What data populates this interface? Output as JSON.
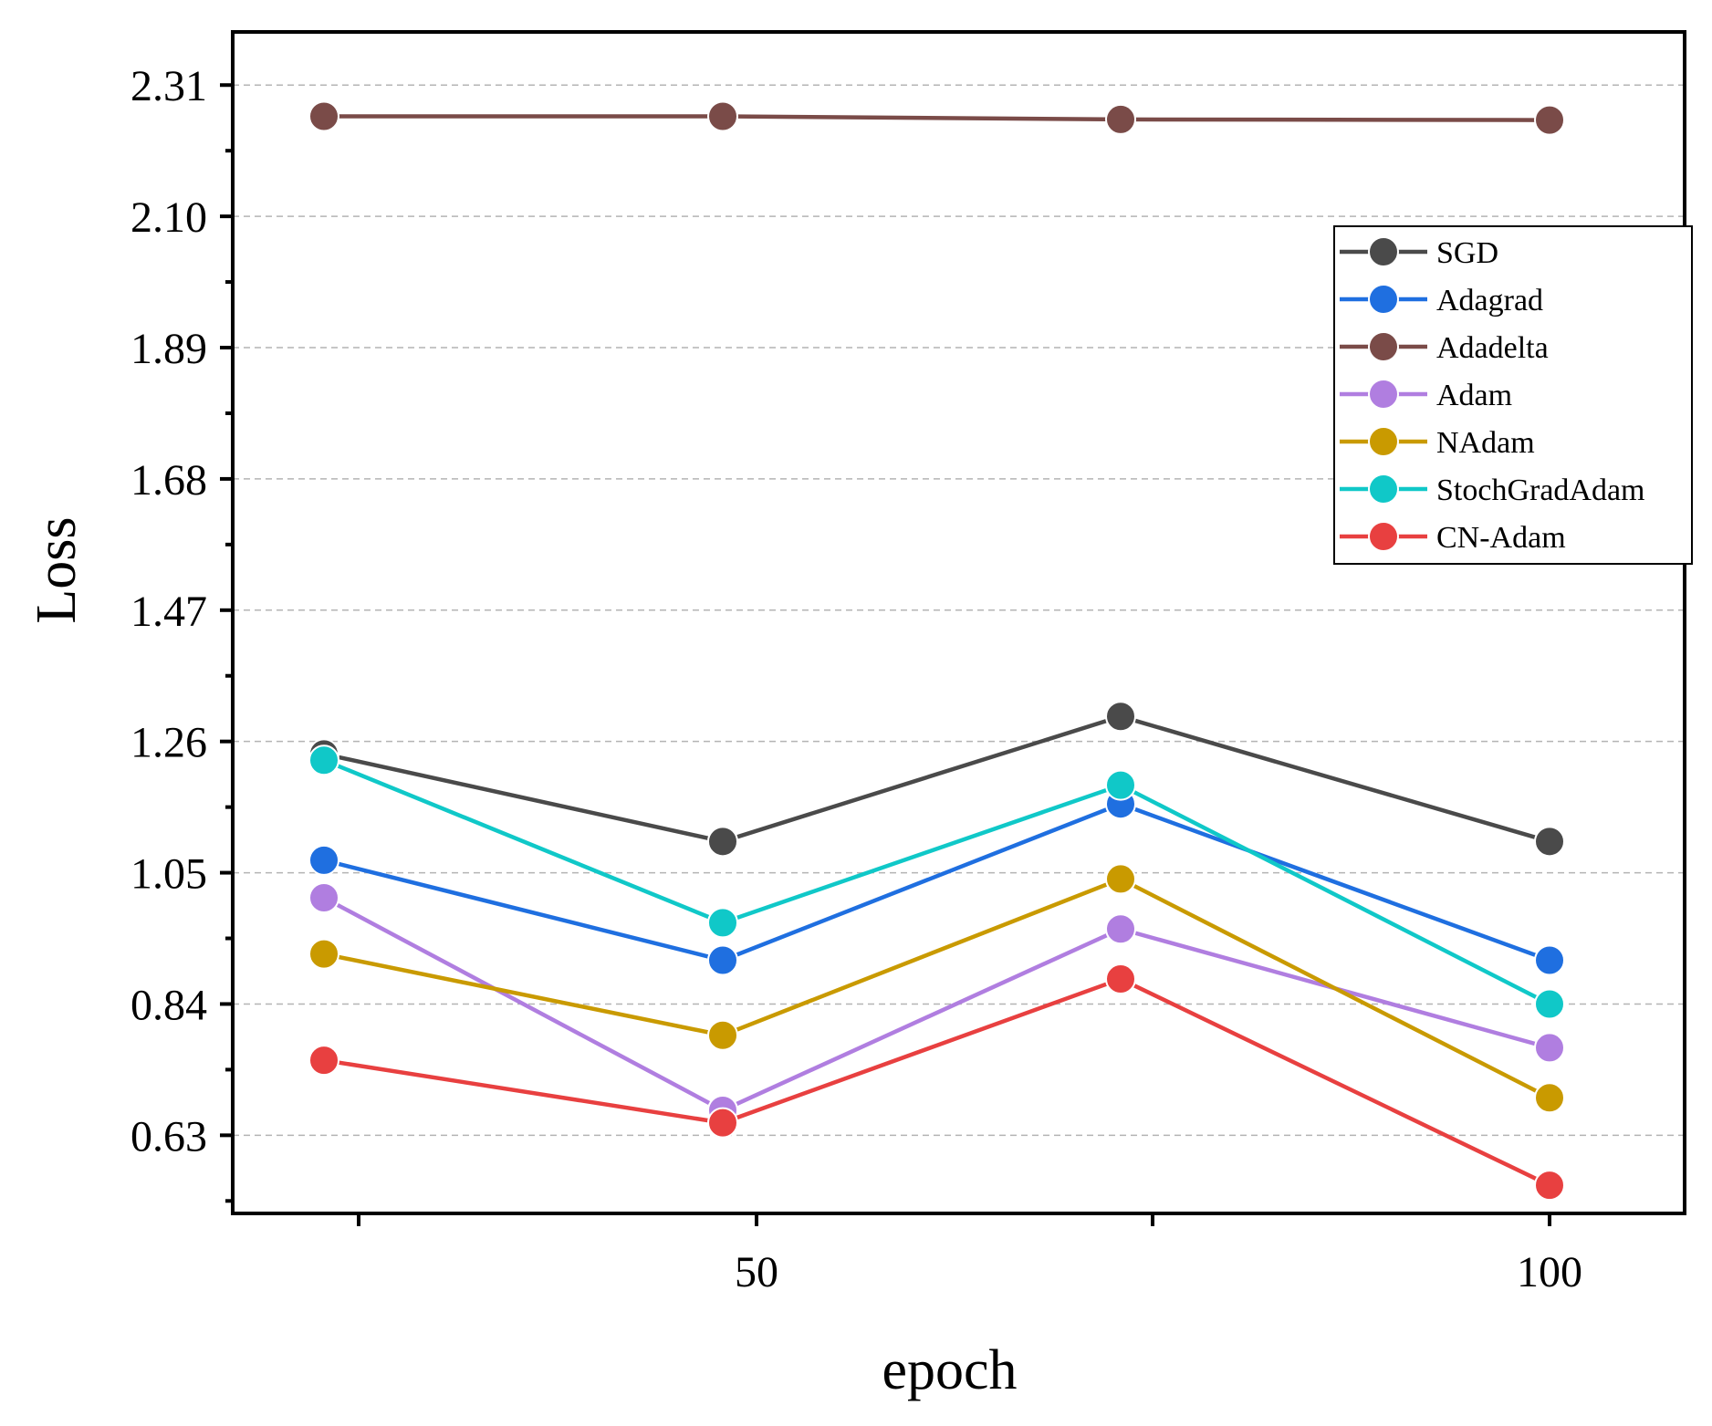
{
  "chart_data": {
    "type": "line",
    "xlabel": "epoch",
    "ylabel": "Loss",
    "x": [
      1,
      2,
      3,
      4
    ],
    "x_tick_labels": [
      "",
      "50",
      "",
      "100"
    ],
    "y_ticks": [
      "0.63",
      "0.84",
      "1.05",
      "1.26",
      "1.47",
      "1.68",
      "1.89",
      "2.10",
      "2.31"
    ],
    "ylim": [
      0.505,
      2.395
    ],
    "grid": "horizontal dashed",
    "legend_position": "top-right",
    "series": [
      {
        "name": "SGD",
        "color": "#4a4a4a",
        "values": [
          1.24,
          1.1,
          1.3,
          1.1
        ]
      },
      {
        "name": "Adagrad",
        "color": "#1f6fe0",
        "values": [
          1.07,
          0.91,
          1.16,
          0.91
        ]
      },
      {
        "name": "Adadelta",
        "color": "#7a4b48",
        "values": [
          2.26,
          2.26,
          2.255,
          2.254
        ]
      },
      {
        "name": "Adam",
        "color": "#b07ee0",
        "values": [
          1.01,
          0.67,
          0.96,
          0.77
        ]
      },
      {
        "name": "NAdam",
        "color": "#c99a00",
        "values": [
          0.92,
          0.79,
          1.04,
          0.69
        ]
      },
      {
        "name": "StochGradAdam",
        "color": "#10c8c8",
        "values": [
          1.23,
          0.97,
          1.19,
          0.84
        ]
      },
      {
        "name": "CN-Adam",
        "color": "#e84040",
        "values": [
          0.75,
          0.65,
          0.88,
          0.55
        ]
      }
    ]
  }
}
